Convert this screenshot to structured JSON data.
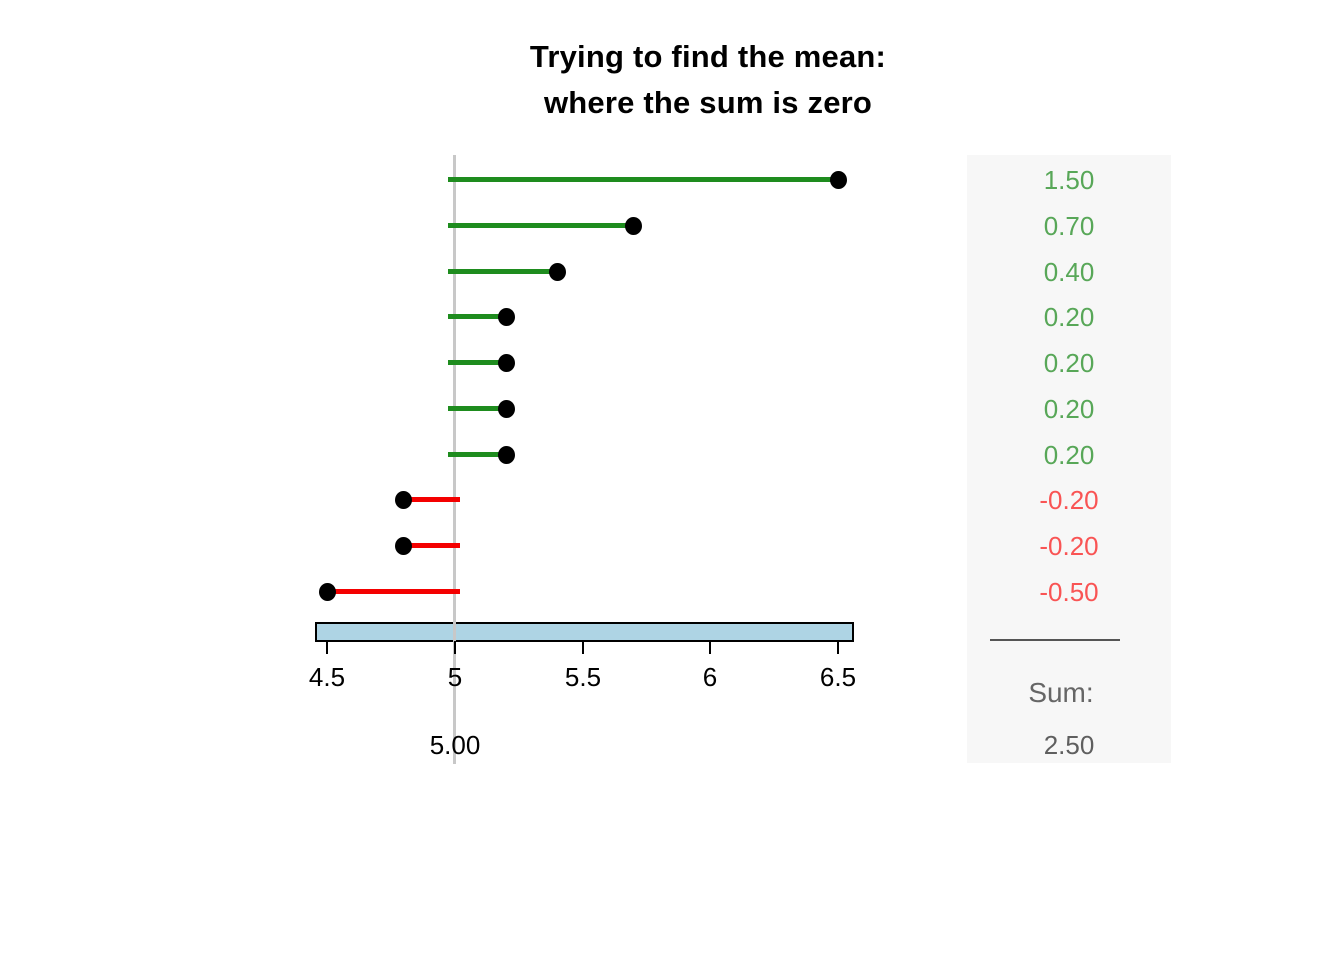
{
  "title": {
    "line1": "Trying to find the mean:",
    "line2": "where the sum is zero"
  },
  "chart_data": {
    "type": "scatter",
    "subtype": "horizontal-lollipop-deviation-stems",
    "title": "Trying to find the mean: where the sum is zero",
    "candidate_mean": 5.0,
    "candidate_mean_label": "5.00",
    "values": [
      6.5,
      5.7,
      5.4,
      5.2,
      5.2,
      5.2,
      5.2,
      4.8,
      4.8,
      4.5
    ],
    "deviations": [
      1.5,
      0.7,
      0.4,
      0.2,
      0.2,
      0.2,
      0.2,
      -0.2,
      -0.2,
      -0.5
    ],
    "deviation_labels": [
      "1.50",
      "0.70",
      "0.40",
      "0.20",
      "0.20",
      "0.20",
      "0.20",
      "-0.20",
      "-0.20",
      "-0.50"
    ],
    "sum": {
      "label": "Sum:",
      "value": "2.50"
    },
    "x_axis": {
      "tick_values": [
        4.5,
        5,
        5.5,
        6,
        6.5
      ],
      "tick_labels": [
        "4.5",
        "5",
        "5.5",
        "6",
        "6.5"
      ],
      "range": [
        4.5,
        6.5
      ]
    },
    "range_bar": {
      "from": 4.45,
      "to": 6.56
    },
    "grid": false,
    "legend": "none",
    "colors": {
      "positive_stem": "#1e8c1e",
      "negative_stem": "#f40000",
      "point": "#000000",
      "positive_label": "#58a758",
      "negative_label": "#f95454",
      "reference_line": "#c8c8c8",
      "range_bar_fill": "#aed4e4",
      "range_bar_border": "#000000",
      "panel_bg": "#f7f7f7",
      "divider": "#555555",
      "sum_label_text": "#666666",
      "sum_value_text": "#5f5f5f",
      "axis_text": "#000000"
    }
  }
}
